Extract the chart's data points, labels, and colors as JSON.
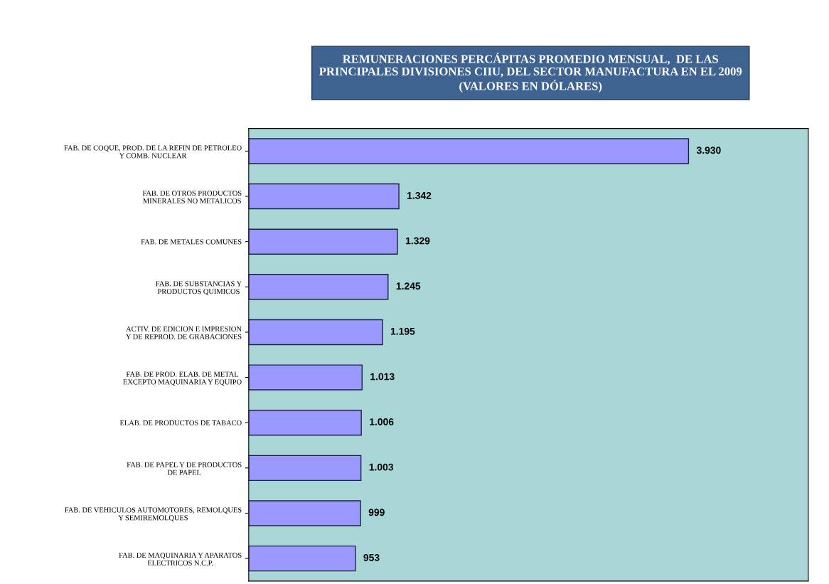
{
  "chart_data": {
    "type": "bar",
    "orientation": "horizontal",
    "title": "REMUNERACIONES PERCÁPITAS PROMEDIO MENSUAL,  DE LAS\nPRINCIPALES DIVISIONES CIIU, DEL SECTOR MANUFACTURA EN EL 2009\n(VALORES EN DÓLARES)",
    "categories": [
      "FAB. DE COQUE, PROD. DE LA REFIN DE PETROLEO\nY COMB. NUCLEAR",
      "FAB. DE OTROS PRODUCTOS\nMINERALES NO METALICOS",
      "FAB. DE METALES COMUNES",
      "FAB. DE SUBSTANCIAS Y\nPRODUCTOS QUIMICOS",
      "ACTIV. DE EDICION E IMPRESION\nY DE REPROD. DE GRABACIONES",
      "FAB. DE PROD. ELAB. DE METAL\nEXCEPTO MAQUINARIA Y EQUIPO",
      "ELAB. DE PRODUCTOS DE TABACO",
      "FAB. DE PAPEL Y DE PRODUCTOS\nDE PAPEL",
      "FAB. DE VEHICULOS AUTOMOTORES, REMOLQUES\nY SEMIREMOLQUES",
      "FAB. DE MAQUINARIA Y APARATOS\nELECTRICOS N.C.P."
    ],
    "values": [
      3930,
      1342,
      1329,
      1245,
      1195,
      1013,
      1006,
      1003,
      999,
      953
    ],
    "value_labels": [
      "3.930",
      "1.342",
      "1.329",
      "1.245",
      "1.195",
      "1.013",
      "1.006",
      "1.003",
      "999",
      "953"
    ],
    "color": "#9999ff",
    "xlim": [
      0,
      5000
    ],
    "tick_labels": "y",
    "grid": false,
    "legend": false
  }
}
